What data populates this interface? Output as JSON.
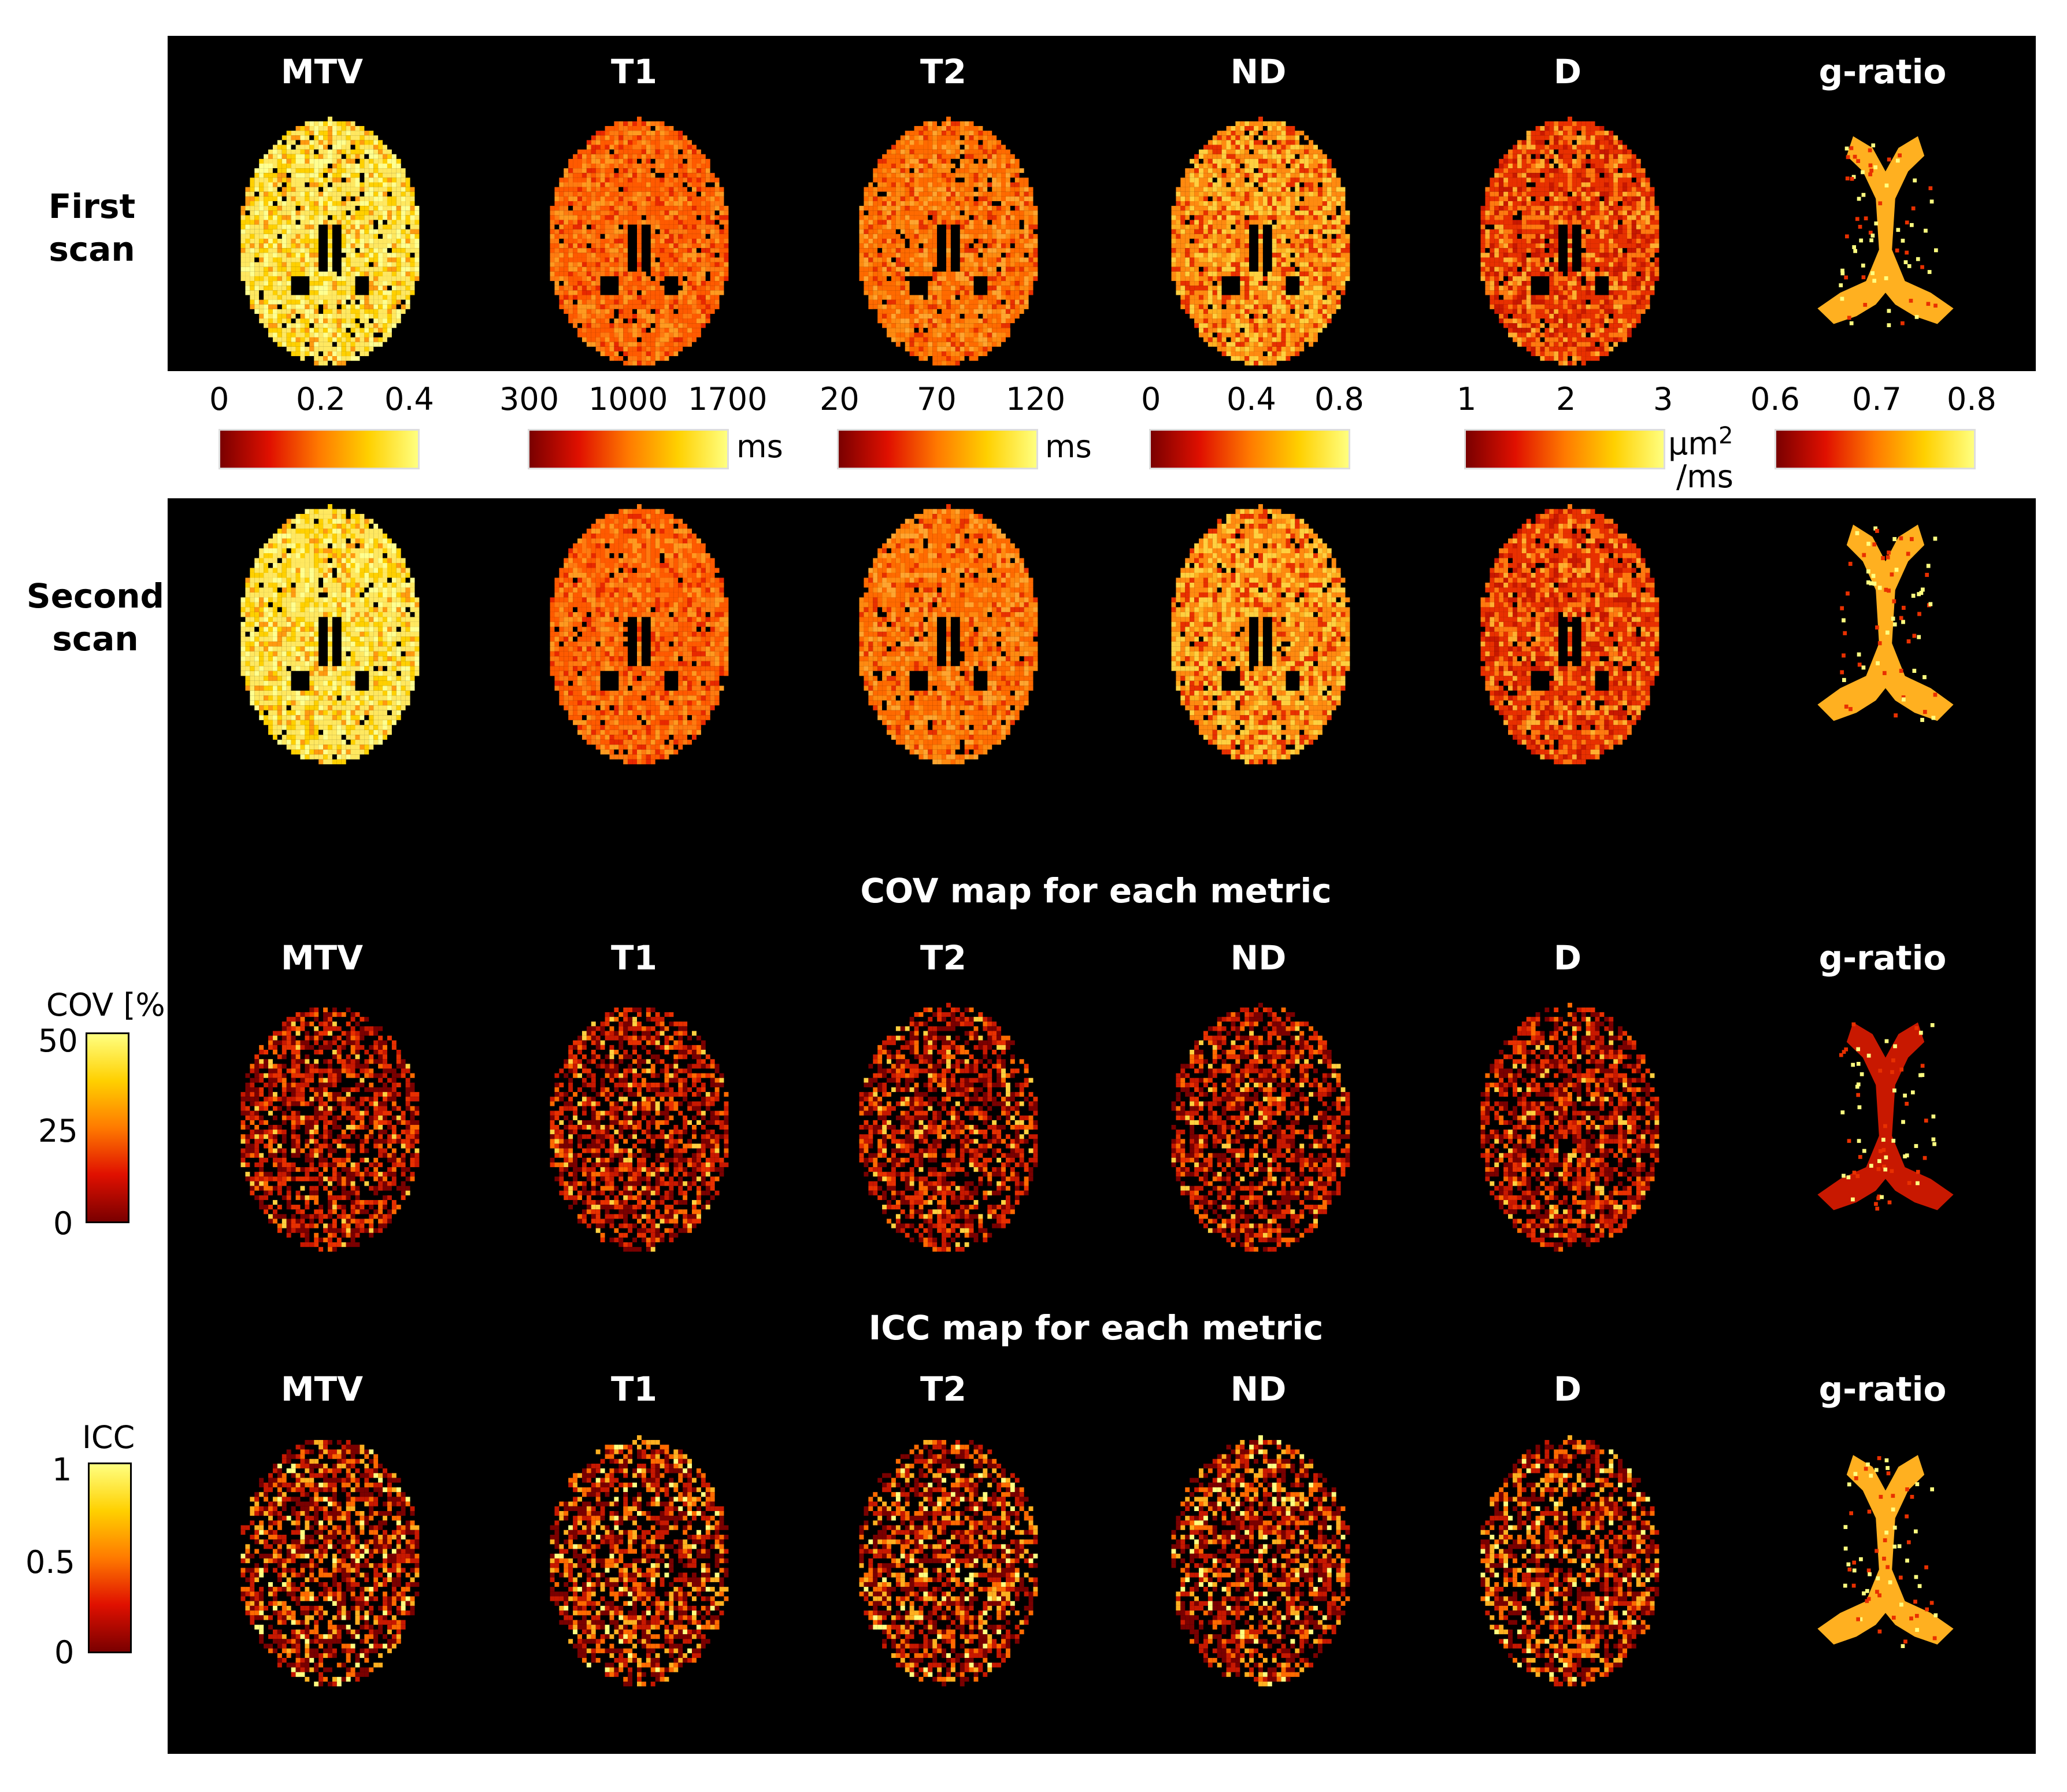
{
  "figure": {
    "columns": [
      "MTV",
      "T1",
      "T2",
      "ND",
      "D",
      "g-ratio"
    ],
    "row_labels": {
      "first": [
        "First",
        "scan"
      ],
      "second": [
        "Second",
        "scan"
      ]
    },
    "colorbars": [
      {
        "metric": "MTV",
        "ticks": [
          "0",
          "0.2",
          "0.4"
        ],
        "unit": ""
      },
      {
        "metric": "T1",
        "ticks": [
          "300",
          "1000",
          "1700"
        ],
        "unit": "ms"
      },
      {
        "metric": "T2",
        "ticks": [
          "20",
          "70",
          "120"
        ],
        "unit": "ms"
      },
      {
        "metric": "ND",
        "ticks": [
          "0",
          "0.4",
          "0.8"
        ],
        "unit": ""
      },
      {
        "metric": "D",
        "ticks": [
          "1",
          "2",
          "3"
        ],
        "unit": "μm²/ms",
        "unit_line1": "μm",
        "unit_sup": "2",
        "unit_line2": "/ms"
      },
      {
        "metric": "g-ratio",
        "ticks": [
          "0.6",
          "0.7",
          "0.8"
        ],
        "unit": ""
      }
    ],
    "cov_section": {
      "title": "COV map for each metric",
      "colorbar_label": "COV [%]",
      "ticks": [
        "50",
        "25",
        "0"
      ]
    },
    "icc_section": {
      "title": "ICC map for each metric",
      "colorbar_label": "ICC",
      "ticks": [
        "1",
        "0.5",
        "0"
      ]
    },
    "colormap": [
      "#7a0000",
      "#e01000",
      "#ff7a00",
      "#ffd000",
      "#ffff80"
    ],
    "background_color": "#000000"
  }
}
